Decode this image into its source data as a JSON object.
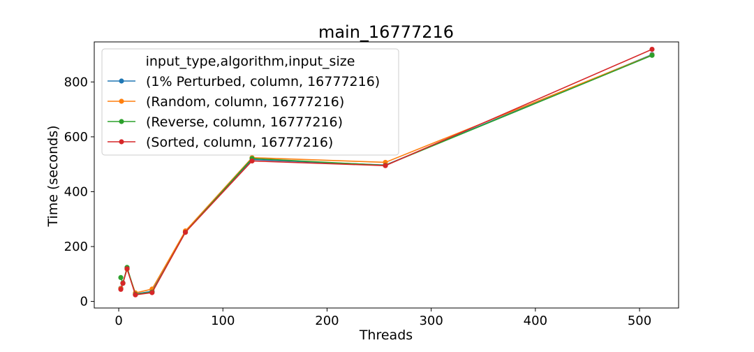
{
  "chart_data": {
    "type": "line",
    "title": "main_16777216",
    "xlabel": "Threads",
    "ylabel": "Time (seconds)",
    "xlim": [
      -23.5,
      537.5
    ],
    "ylim": [
      -24,
      946
    ],
    "xticks": [
      0,
      100,
      200,
      300,
      400,
      500
    ],
    "yticks": [
      0,
      200,
      400,
      600,
      800
    ],
    "grid": false,
    "legend": {
      "title": "input_type,algorithm,input_size",
      "placement": "top-left"
    },
    "x": [
      2,
      4,
      8,
      16,
      32,
      64,
      128,
      256,
      512
    ],
    "series": [
      {
        "name": "(1% Perturbed, column, 16777216)",
        "color": "#1f77b4",
        "values": [
          48,
          68,
          120,
          27,
          37,
          255,
          517,
          497,
          900
        ]
      },
      {
        "name": "(Random, column, 16777216)",
        "color": "#ff7f0e",
        "values": [
          47,
          67,
          118,
          31,
          45,
          257,
          524,
          507,
          898
        ]
      },
      {
        "name": "(Reverse, column, 16777216)",
        "color": "#2ca02c",
        "values": [
          87,
          66,
          124,
          26,
          34,
          252,
          521,
          496,
          897
        ]
      },
      {
        "name": "(Sorted, column, 16777216)",
        "color": "#d62728",
        "values": [
          44,
          66,
          119,
          24,
          32,
          252,
          512,
          495,
          919
        ]
      }
    ]
  }
}
